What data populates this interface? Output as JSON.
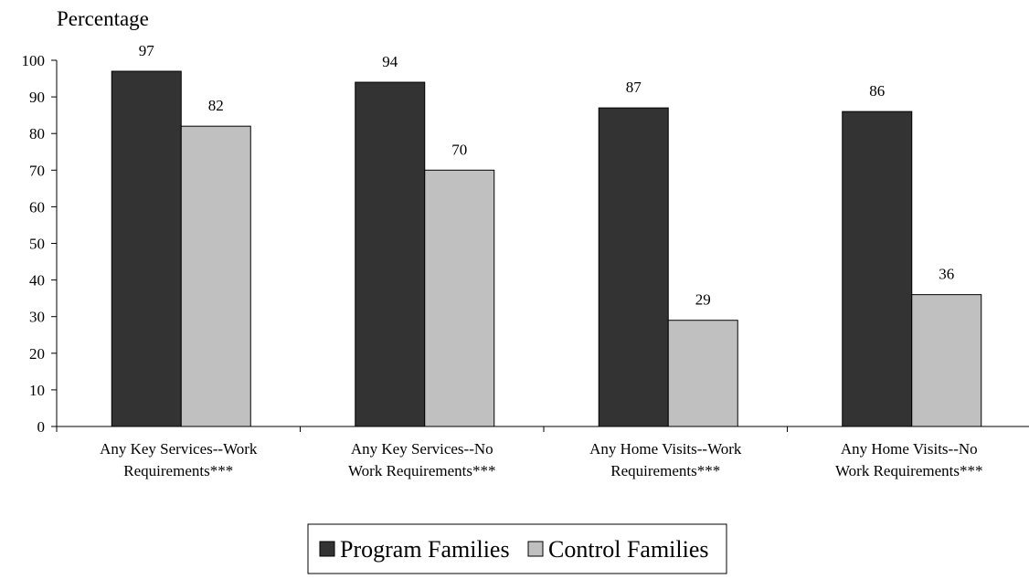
{
  "chart_data": {
    "type": "bar",
    "ylabel": "Percentage",
    "xlabel": "",
    "ylim": [
      0,
      100
    ],
    "yticks": [
      0,
      10,
      20,
      30,
      40,
      50,
      60,
      70,
      80,
      90,
      100
    ],
    "grid": false,
    "legend_position": "bottom",
    "categories": [
      [
        "Any Key Services--Work",
        "Requirements***"
      ],
      [
        "Any Key Services--No",
        "Work Requirements***"
      ],
      [
        "Any Home Visits--Work",
        "Requirements***"
      ],
      [
        "Any Home Visits--No",
        "Work Requirements***"
      ]
    ],
    "series": [
      {
        "name": "Program Families",
        "color": "#333333",
        "values": [
          97,
          94,
          87,
          86
        ],
        "labels": [
          "97",
          "94",
          "87",
          "86"
        ]
      },
      {
        "name": "Control Families",
        "color": "#c0c0c0",
        "values": [
          82,
          70,
          29,
          36
        ],
        "labels": [
          "82",
          "70",
          "29",
          "36"
        ]
      }
    ]
  }
}
